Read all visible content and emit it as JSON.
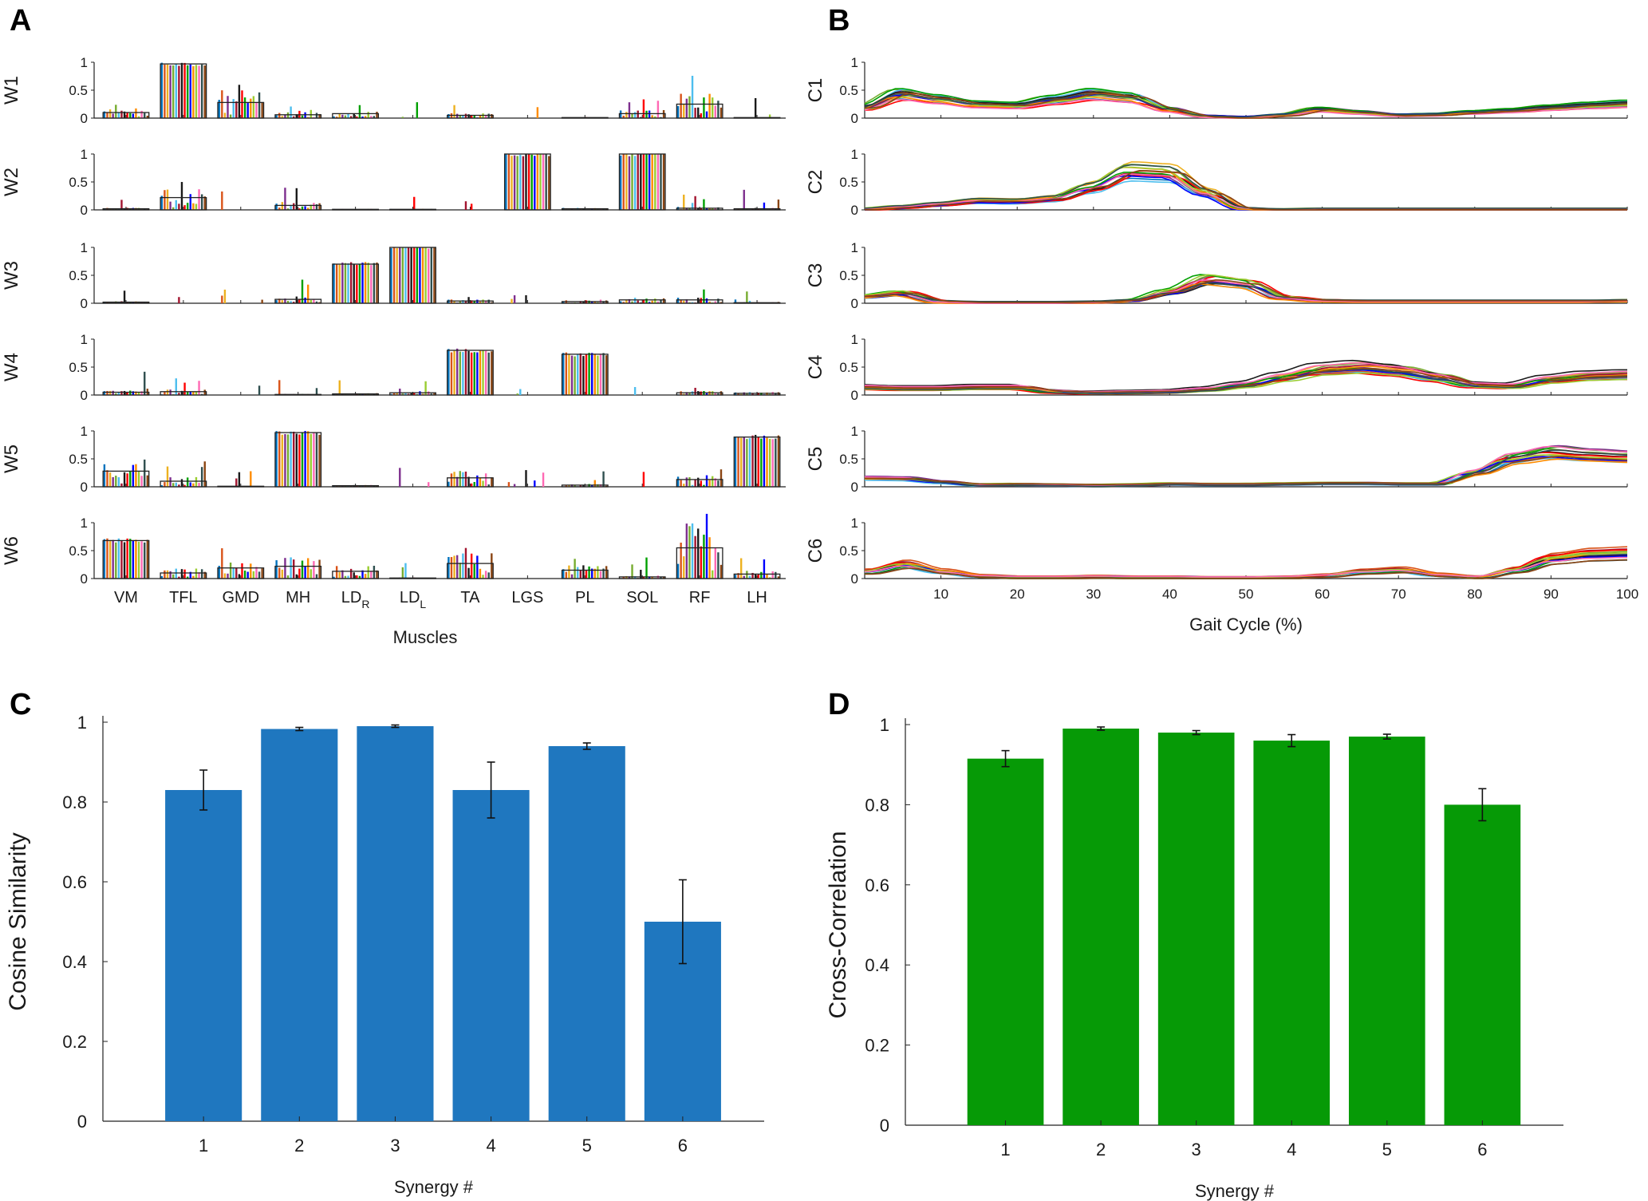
{
  "panels": {
    "A": {
      "letter": "A",
      "row_labels": [
        "W1",
        "W2",
        "W3",
        "W4",
        "W5",
        "W6"
      ]
    },
    "B": {
      "letter": "B",
      "row_labels": [
        "C1",
        "C2",
        "C3",
        "C4",
        "C5",
        "C6"
      ]
    },
    "C": {
      "letter": "C"
    },
    "D": {
      "letter": "D"
    }
  },
  "palette": [
    "#0072bd",
    "#d95319",
    "#edb120",
    "#7e2f8e",
    "#77ac30",
    "#4dbeee",
    "#a2142f",
    "#1a1a1a",
    "#ff0000",
    "#00a000",
    "#0000ff",
    "#ff8c00",
    "#9acd32",
    "#ff69b4",
    "#2f4f4f",
    "#8b4513"
  ],
  "chart_data": [
    {
      "id": "A",
      "type": "bar",
      "title": "",
      "xlabel": "Muscles",
      "ylabel": "",
      "categories": [
        "VM",
        "TFL",
        "GMD",
        "MH",
        "LD_R",
        "LD_L",
        "TA",
        "LGS",
        "PL",
        "SOL",
        "RF",
        "LH"
      ],
      "category_labels": [
        {
          "base": "VM",
          "sub": ""
        },
        {
          "base": "TFL",
          "sub": ""
        },
        {
          "base": "GMD",
          "sub": ""
        },
        {
          "base": "MH",
          "sub": ""
        },
        {
          "base": "LD",
          "sub": "R"
        },
        {
          "base": "LD",
          "sub": "L"
        },
        {
          "base": "TA",
          "sub": ""
        },
        {
          "base": "LGS",
          "sub": ""
        },
        {
          "base": "PL",
          "sub": ""
        },
        {
          "base": "SOL",
          "sub": ""
        },
        {
          "base": "RF",
          "sub": ""
        },
        {
          "base": "LH",
          "sub": ""
        }
      ],
      "ylim": [
        0,
        1
      ],
      "yticks": [
        "0",
        "0.5",
        "1"
      ],
      "n_subjects": 16,
      "series": [
        {
          "name": "W1",
          "values": [
            0.1,
            0.97,
            0.28,
            0.06,
            0.08,
            0.0,
            0.05,
            0.0,
            0.01,
            0.08,
            0.25,
            0.01
          ]
        },
        {
          "name": "W2",
          "values": [
            0.02,
            0.22,
            0.0,
            0.08,
            0.01,
            0.01,
            0.0,
            1.0,
            0.02,
            1.0,
            0.03,
            0.02
          ]
        },
        {
          "name": "W3",
          "values": [
            0.02,
            0.0,
            0.0,
            0.07,
            0.7,
            1.0,
            0.04,
            0.0,
            0.03,
            0.06,
            0.06,
            0.01
          ]
        },
        {
          "name": "W4",
          "values": [
            0.05,
            0.06,
            0.0,
            0.01,
            0.02,
            0.04,
            0.8,
            0.0,
            0.73,
            0.0,
            0.04,
            0.03
          ]
        },
        {
          "name": "W5",
          "values": [
            0.28,
            0.1,
            0.01,
            0.97,
            0.02,
            0.0,
            0.16,
            0.0,
            0.03,
            0.0,
            0.13,
            0.89
          ]
        },
        {
          "name": "W6",
          "values": [
            0.68,
            0.1,
            0.19,
            0.22,
            0.13,
            0.01,
            0.27,
            0.0,
            0.15,
            0.03,
            0.55,
            0.08
          ]
        }
      ]
    },
    {
      "id": "B",
      "type": "line",
      "title": "",
      "xlabel": "Gait Cycle (%)",
      "ylabel": "",
      "xlim": [
        0,
        100
      ],
      "xticks": [
        "10",
        "20",
        "30",
        "40",
        "50",
        "60",
        "70",
        "80",
        "90",
        "100"
      ],
      "ylim": [
        0,
        1
      ],
      "yticks": [
        "0",
        "0.5",
        "1"
      ],
      "x": [
        0,
        5,
        10,
        15,
        20,
        25,
        30,
        35,
        40,
        45,
        50,
        55,
        60,
        65,
        70,
        75,
        80,
        85,
        90,
        95,
        100
      ],
      "series": [
        {
          "name": "C1",
          "values": [
            0.18,
            0.42,
            0.33,
            0.24,
            0.22,
            0.32,
            0.42,
            0.36,
            0.15,
            0.03,
            0.01,
            0.05,
            0.15,
            0.1,
            0.05,
            0.06,
            0.1,
            0.13,
            0.18,
            0.22,
            0.25
          ]
        },
        {
          "name": "C2",
          "values": [
            0.01,
            0.05,
            0.1,
            0.16,
            0.15,
            0.2,
            0.4,
            0.68,
            0.65,
            0.3,
            0.02,
            0.0,
            0.01,
            0.01,
            0.01,
            0.01,
            0.01,
            0.01,
            0.01,
            0.01,
            0.01
          ]
        },
        {
          "name": "C3",
          "values": [
            0.12,
            0.18,
            0.03,
            0.01,
            0.01,
            0.01,
            0.02,
            0.05,
            0.2,
            0.42,
            0.35,
            0.1,
            0.05,
            0.04,
            0.04,
            0.04,
            0.04,
            0.04,
            0.04,
            0.04,
            0.05
          ]
        },
        {
          "name": "C4",
          "values": [
            0.14,
            0.12,
            0.12,
            0.14,
            0.14,
            0.06,
            0.04,
            0.05,
            0.06,
            0.1,
            0.18,
            0.32,
            0.46,
            0.5,
            0.44,
            0.32,
            0.18,
            0.16,
            0.28,
            0.34,
            0.36
          ]
        },
        {
          "name": "C5",
          "values": [
            0.15,
            0.14,
            0.08,
            0.03,
            0.04,
            0.03,
            0.02,
            0.03,
            0.05,
            0.04,
            0.04,
            0.05,
            0.06,
            0.06,
            0.05,
            0.05,
            0.25,
            0.5,
            0.6,
            0.55,
            0.52
          ]
        },
        {
          "name": "C6",
          "values": [
            0.12,
            0.25,
            0.12,
            0.04,
            0.02,
            0.02,
            0.03,
            0.02,
            0.02,
            0.01,
            0.01,
            0.02,
            0.05,
            0.12,
            0.15,
            0.06,
            0.02,
            0.15,
            0.35,
            0.42,
            0.44
          ]
        }
      ]
    },
    {
      "id": "C",
      "type": "bar",
      "title": "",
      "xlabel": "Synergy #",
      "ylabel": "Cosine Similarity",
      "categories": [
        "1",
        "2",
        "3",
        "4",
        "5",
        "6"
      ],
      "ylim": [
        0,
        1
      ],
      "yticks": [
        "0",
        "0.2",
        "0.4",
        "0.6",
        "0.8",
        "1"
      ],
      "values": [
        0.83,
        0.983,
        0.99,
        0.83,
        0.94,
        0.5
      ],
      "errors": [
        0.05,
        0.004,
        0.003,
        0.07,
        0.008,
        0.105
      ],
      "color": "#1f77bf"
    },
    {
      "id": "D",
      "type": "bar",
      "title": "",
      "xlabel": "Synergy #",
      "ylabel": "Cross-Correlation",
      "categories": [
        "1",
        "2",
        "3",
        "4",
        "5",
        "6"
      ],
      "ylim": [
        0,
        1
      ],
      "yticks": [
        "0",
        "0.2",
        "0.4",
        "0.6",
        "0.8",
        "1"
      ],
      "values": [
        0.915,
        0.99,
        0.98,
        0.96,
        0.97,
        0.8
      ],
      "errors": [
        0.02,
        0.004,
        0.005,
        0.015,
        0.006,
        0.04
      ],
      "color": "#069a06"
    }
  ]
}
